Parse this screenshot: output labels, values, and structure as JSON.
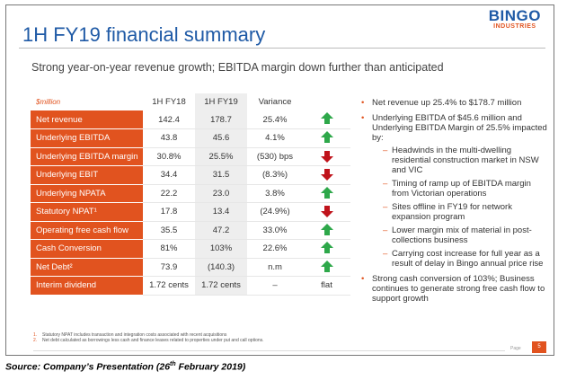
{
  "logo": {
    "main": "BINGO",
    "sub": "INDUSTRIES"
  },
  "title": "1H FY19 financial summary",
  "subtitle": "Strong year-on-year revenue growth; EBITDA margin down further than anticipated",
  "table": {
    "unit_label": "$million",
    "columns": [
      "1H FY18",
      "1H FY19",
      "Variance"
    ],
    "rows": [
      {
        "label": "Net revenue",
        "fy18": "142.4",
        "fy19": "178.7",
        "variance": "25.4%",
        "indicator": "up"
      },
      {
        "label": "Underlying EBITDA",
        "fy18": "43.8",
        "fy19": "45.6",
        "variance": "4.1%",
        "indicator": "up"
      },
      {
        "label": "Underlying EBITDA margin",
        "fy18": "30.8%",
        "fy19": "25.5%",
        "variance": "(530) bps",
        "indicator": "down"
      },
      {
        "label": "Underlying EBIT",
        "fy18": "34.4",
        "fy19": "31.5",
        "variance": "(8.3%)",
        "indicator": "down"
      },
      {
        "label": "Underlying NPATA",
        "fy18": "22.2",
        "fy19": "23.0",
        "variance": "3.8%",
        "indicator": "up"
      },
      {
        "label": "Statutory NPAT¹",
        "fy18": "17.8",
        "fy19": "13.4",
        "variance": "(24.9%)",
        "indicator": "down"
      },
      {
        "label": "Operating free cash flow",
        "fy18": "35.5",
        "fy19": "47.2",
        "variance": "33.0%",
        "indicator": "up"
      },
      {
        "label": "Cash Conversion",
        "fy18": "81%",
        "fy19": "103%",
        "variance": "22.6%",
        "indicator": "up"
      },
      {
        "label": "Net Debt²",
        "fy18": "73.9",
        "fy19": "(140.3)",
        "variance": "n.m",
        "indicator": "up"
      },
      {
        "label": "Interim dividend",
        "fy18": "1.72 cents",
        "fy19": "1.72 cents",
        "variance": "–",
        "indicator": "flat",
        "indicator_text": "flat"
      }
    ]
  },
  "bullets": [
    {
      "text": "Net revenue up 25.4% to $178.7 million",
      "subs": []
    },
    {
      "text": "Underlying EBITDA of $45.6 million and Underlying EBITDA Margin of 25.5% impacted by:",
      "subs": [
        "Headwinds in the multi-dwelling residential construction market in NSW and VIC",
        "Timing of ramp up of EBITDA margin from Victorian operations",
        "Sites offline in FY19 for network expansion program",
        "Lower margin mix of material in post-collections business",
        "Carrying cost increase for full year as a result of delay in Bingo annual price rise"
      ]
    },
    {
      "text": "Strong cash conversion of 103%; Business continues to generate strong free cash flow to support growth",
      "subs": []
    }
  ],
  "notes": [
    {
      "num": "1.",
      "text": "Statutory NPAT includes transaction and integration costs associated with recent acquisitions"
    },
    {
      "num": "2.",
      "text": "Net debt calculated as borrowings less cash and finance leases related to properties under put and call options."
    }
  ],
  "footer": {
    "page_label": "Page",
    "page_number": "5"
  },
  "source": {
    "prefix": "Source: Company’s Presentation (26",
    "sup": "th",
    "suffix": " February 2019)"
  },
  "colors": {
    "accent_orange": "#e1531f",
    "brand_blue": "#1f5aa6",
    "up_green": "#2ea84a",
    "down_red": "#c0131b"
  }
}
